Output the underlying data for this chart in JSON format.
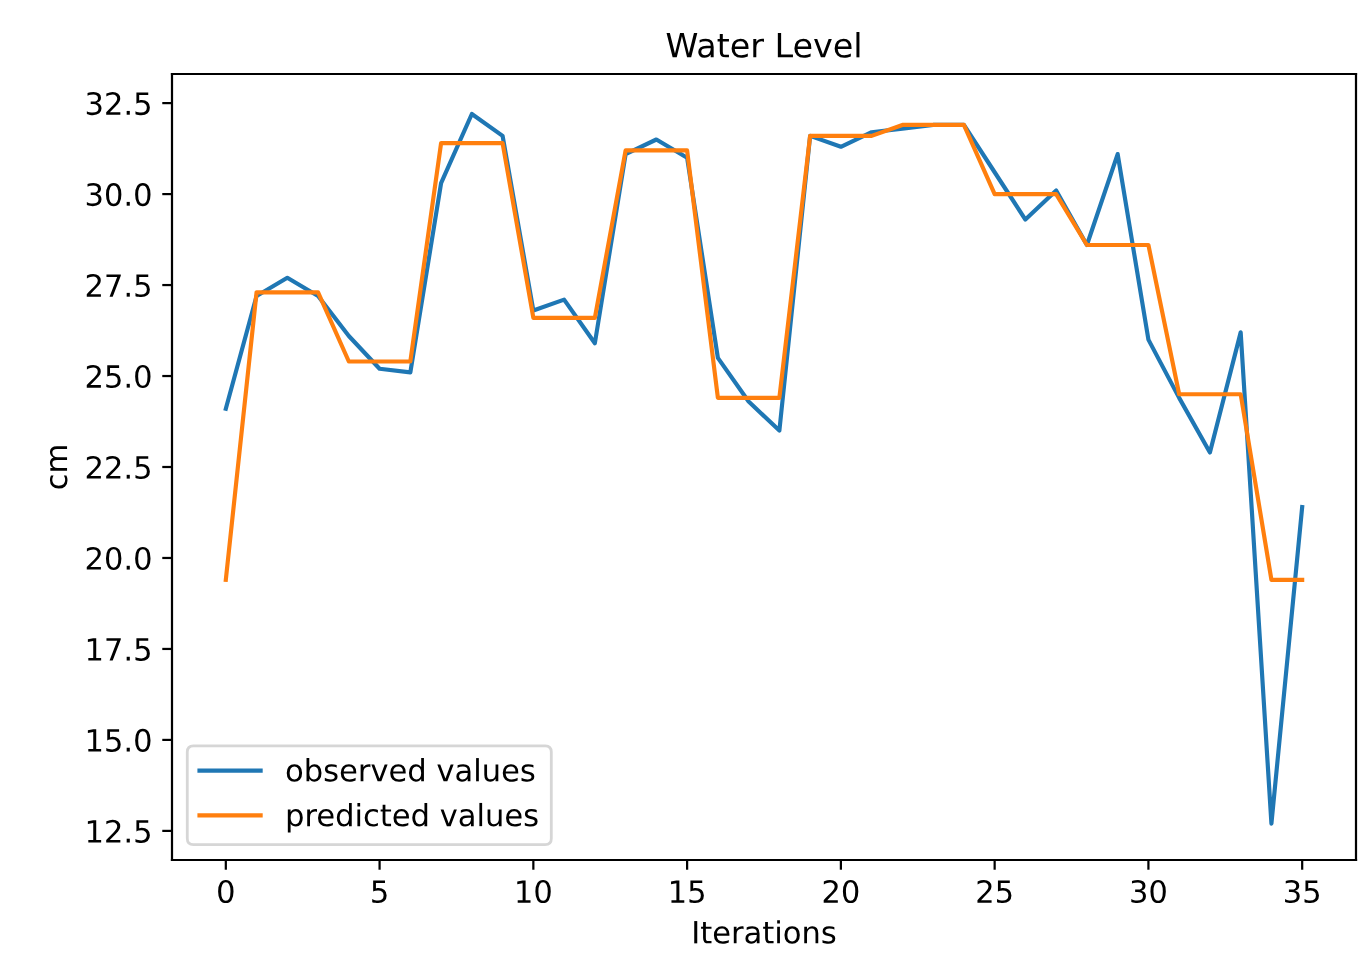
{
  "chart_data": {
    "type": "line",
    "title": "Water Level",
    "xlabel": "Iterations",
    "ylabel": "cm",
    "x": [
      0,
      1,
      2,
      3,
      4,
      5,
      6,
      7,
      8,
      9,
      10,
      11,
      12,
      13,
      14,
      15,
      16,
      17,
      18,
      19,
      20,
      21,
      22,
      23,
      24,
      25,
      26,
      27,
      28,
      29,
      30,
      31,
      32,
      33,
      34,
      35
    ],
    "series": [
      {
        "name": "observed values",
        "color": "#1f77b4",
        "values": [
          24.1,
          27.2,
          27.7,
          27.2,
          26.1,
          25.2,
          25.1,
          30.3,
          32.2,
          31.6,
          26.8,
          27.1,
          25.9,
          31.1,
          31.5,
          31.0,
          25.5,
          24.3,
          23.5,
          31.6,
          31.3,
          31.7,
          31.8,
          31.9,
          31.9,
          30.6,
          29.3,
          30.1,
          28.6,
          31.1,
          26.0,
          24.4,
          22.9,
          26.2,
          12.7,
          21.4
        ]
      },
      {
        "name": "predicted values",
        "color": "#ff7f0e",
        "values": [
          19.4,
          27.3,
          27.3,
          27.3,
          25.4,
          25.4,
          25.4,
          31.4,
          31.4,
          31.4,
          26.6,
          26.6,
          26.6,
          31.2,
          31.2,
          31.2,
          24.4,
          24.4,
          24.4,
          31.6,
          31.6,
          31.6,
          31.9,
          31.9,
          31.9,
          30.0,
          30.0,
          30.0,
          28.6,
          28.6,
          28.6,
          24.5,
          24.5,
          24.5,
          19.4,
          19.4
        ]
      }
    ],
    "xlim": [
      -1.75,
      36.75
    ],
    "ylim": [
      11.7,
      33.3
    ],
    "xticks": [
      0,
      5,
      10,
      15,
      20,
      25,
      30,
      35
    ],
    "yticks": [
      {
        "value": 12.5,
        "label": "12.5"
      },
      {
        "value": 15,
        "label": "15.0"
      },
      {
        "value": 17.5,
        "label": "17.5"
      },
      {
        "value": 20,
        "label": "20.0"
      },
      {
        "value": 22.5,
        "label": "22.5"
      },
      {
        "value": 25,
        "label": "25.0"
      },
      {
        "value": 27.5,
        "label": "27.5"
      },
      {
        "value": 30,
        "label": "30.0"
      },
      {
        "value": 32.5,
        "label": "32.5"
      }
    ],
    "legend": "bottom left",
    "grid": false
  }
}
